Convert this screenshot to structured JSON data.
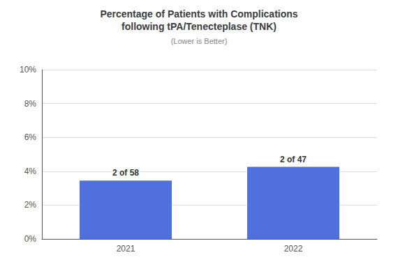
{
  "chart_data": {
    "type": "bar",
    "title": "Percentage of Patients with Complications\nfollowing tPA/Tenecteplase (TNK)",
    "subtitle": "(Lower is Better)",
    "categories": [
      "2021",
      "2022"
    ],
    "values": [
      3.448,
      4.255
    ],
    "data_labels": true,
    "value_labels": [
      "2 of 58",
      "2 of 47"
    ],
    "ylim": [
      0,
      10
    ],
    "yticks": [
      {
        "value": 0,
        "label": "0%"
      },
      {
        "value": 2,
        "label": "2%"
      },
      {
        "value": 4,
        "label": "4%"
      },
      {
        "value": 6,
        "label": "6%"
      },
      {
        "value": 8,
        "label": "8%"
      },
      {
        "value": 10,
        "label": "10%"
      }
    ],
    "grid": true
  }
}
